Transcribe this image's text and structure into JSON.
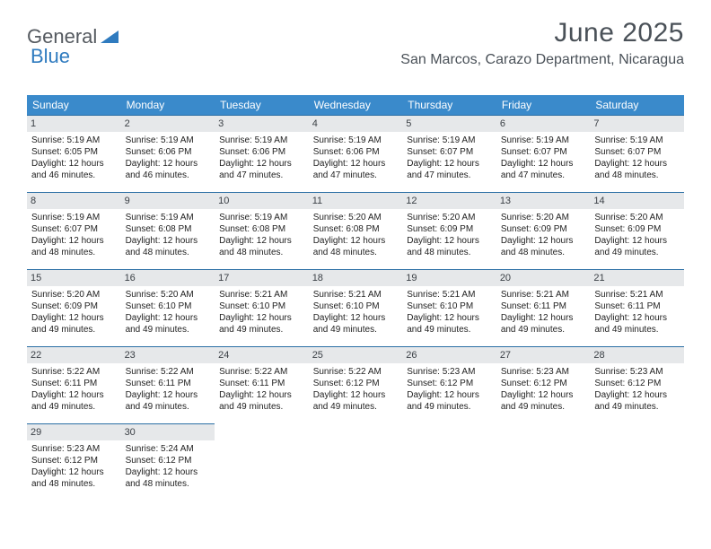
{
  "logo": {
    "part1": "General",
    "part2": "Blue"
  },
  "title": "June 2025",
  "location": "San Marcos, Carazo Department, Nicaragua",
  "colors": {
    "header_bg": "#3a8acb",
    "header_text": "#ffffff",
    "daynum_bg": "#e6e8ea",
    "border": "#2b6fa5",
    "title_color": "#4a5158",
    "logo_gray": "#555a60",
    "logo_blue": "#2f7bbf",
    "background": "#ffffff"
  },
  "daysOfWeek": [
    "Sunday",
    "Monday",
    "Tuesday",
    "Wednesday",
    "Thursday",
    "Friday",
    "Saturday"
  ],
  "weeks": [
    [
      {
        "n": "1",
        "sr": "Sunrise: 5:19 AM",
        "ss": "Sunset: 6:05 PM",
        "dl": "Daylight: 12 hours and 46 minutes."
      },
      {
        "n": "2",
        "sr": "Sunrise: 5:19 AM",
        "ss": "Sunset: 6:06 PM",
        "dl": "Daylight: 12 hours and 46 minutes."
      },
      {
        "n": "3",
        "sr": "Sunrise: 5:19 AM",
        "ss": "Sunset: 6:06 PM",
        "dl": "Daylight: 12 hours and 47 minutes."
      },
      {
        "n": "4",
        "sr": "Sunrise: 5:19 AM",
        "ss": "Sunset: 6:06 PM",
        "dl": "Daylight: 12 hours and 47 minutes."
      },
      {
        "n": "5",
        "sr": "Sunrise: 5:19 AM",
        "ss": "Sunset: 6:07 PM",
        "dl": "Daylight: 12 hours and 47 minutes."
      },
      {
        "n": "6",
        "sr": "Sunrise: 5:19 AM",
        "ss": "Sunset: 6:07 PM",
        "dl": "Daylight: 12 hours and 47 minutes."
      },
      {
        "n": "7",
        "sr": "Sunrise: 5:19 AM",
        "ss": "Sunset: 6:07 PM",
        "dl": "Daylight: 12 hours and 48 minutes."
      }
    ],
    [
      {
        "n": "8",
        "sr": "Sunrise: 5:19 AM",
        "ss": "Sunset: 6:07 PM",
        "dl": "Daylight: 12 hours and 48 minutes."
      },
      {
        "n": "9",
        "sr": "Sunrise: 5:19 AM",
        "ss": "Sunset: 6:08 PM",
        "dl": "Daylight: 12 hours and 48 minutes."
      },
      {
        "n": "10",
        "sr": "Sunrise: 5:19 AM",
        "ss": "Sunset: 6:08 PM",
        "dl": "Daylight: 12 hours and 48 minutes."
      },
      {
        "n": "11",
        "sr": "Sunrise: 5:20 AM",
        "ss": "Sunset: 6:08 PM",
        "dl": "Daylight: 12 hours and 48 minutes."
      },
      {
        "n": "12",
        "sr": "Sunrise: 5:20 AM",
        "ss": "Sunset: 6:09 PM",
        "dl": "Daylight: 12 hours and 48 minutes."
      },
      {
        "n": "13",
        "sr": "Sunrise: 5:20 AM",
        "ss": "Sunset: 6:09 PM",
        "dl": "Daylight: 12 hours and 48 minutes."
      },
      {
        "n": "14",
        "sr": "Sunrise: 5:20 AM",
        "ss": "Sunset: 6:09 PM",
        "dl": "Daylight: 12 hours and 49 minutes."
      }
    ],
    [
      {
        "n": "15",
        "sr": "Sunrise: 5:20 AM",
        "ss": "Sunset: 6:09 PM",
        "dl": "Daylight: 12 hours and 49 minutes."
      },
      {
        "n": "16",
        "sr": "Sunrise: 5:20 AM",
        "ss": "Sunset: 6:10 PM",
        "dl": "Daylight: 12 hours and 49 minutes."
      },
      {
        "n": "17",
        "sr": "Sunrise: 5:21 AM",
        "ss": "Sunset: 6:10 PM",
        "dl": "Daylight: 12 hours and 49 minutes."
      },
      {
        "n": "18",
        "sr": "Sunrise: 5:21 AM",
        "ss": "Sunset: 6:10 PM",
        "dl": "Daylight: 12 hours and 49 minutes."
      },
      {
        "n": "19",
        "sr": "Sunrise: 5:21 AM",
        "ss": "Sunset: 6:10 PM",
        "dl": "Daylight: 12 hours and 49 minutes."
      },
      {
        "n": "20",
        "sr": "Sunrise: 5:21 AM",
        "ss": "Sunset: 6:11 PM",
        "dl": "Daylight: 12 hours and 49 minutes."
      },
      {
        "n": "21",
        "sr": "Sunrise: 5:21 AM",
        "ss": "Sunset: 6:11 PM",
        "dl": "Daylight: 12 hours and 49 minutes."
      }
    ],
    [
      {
        "n": "22",
        "sr": "Sunrise: 5:22 AM",
        "ss": "Sunset: 6:11 PM",
        "dl": "Daylight: 12 hours and 49 minutes."
      },
      {
        "n": "23",
        "sr": "Sunrise: 5:22 AM",
        "ss": "Sunset: 6:11 PM",
        "dl": "Daylight: 12 hours and 49 minutes."
      },
      {
        "n": "24",
        "sr": "Sunrise: 5:22 AM",
        "ss": "Sunset: 6:11 PM",
        "dl": "Daylight: 12 hours and 49 minutes."
      },
      {
        "n": "25",
        "sr": "Sunrise: 5:22 AM",
        "ss": "Sunset: 6:12 PM",
        "dl": "Daylight: 12 hours and 49 minutes."
      },
      {
        "n": "26",
        "sr": "Sunrise: 5:23 AM",
        "ss": "Sunset: 6:12 PM",
        "dl": "Daylight: 12 hours and 49 minutes."
      },
      {
        "n": "27",
        "sr": "Sunrise: 5:23 AM",
        "ss": "Sunset: 6:12 PM",
        "dl": "Daylight: 12 hours and 49 minutes."
      },
      {
        "n": "28",
        "sr": "Sunrise: 5:23 AM",
        "ss": "Sunset: 6:12 PM",
        "dl": "Daylight: 12 hours and 49 minutes."
      }
    ],
    [
      {
        "n": "29",
        "sr": "Sunrise: 5:23 AM",
        "ss": "Sunset: 6:12 PM",
        "dl": "Daylight: 12 hours and 48 minutes."
      },
      {
        "n": "30",
        "sr": "Sunrise: 5:24 AM",
        "ss": "Sunset: 6:12 PM",
        "dl": "Daylight: 12 hours and 48 minutes."
      },
      null,
      null,
      null,
      null,
      null
    ]
  ]
}
